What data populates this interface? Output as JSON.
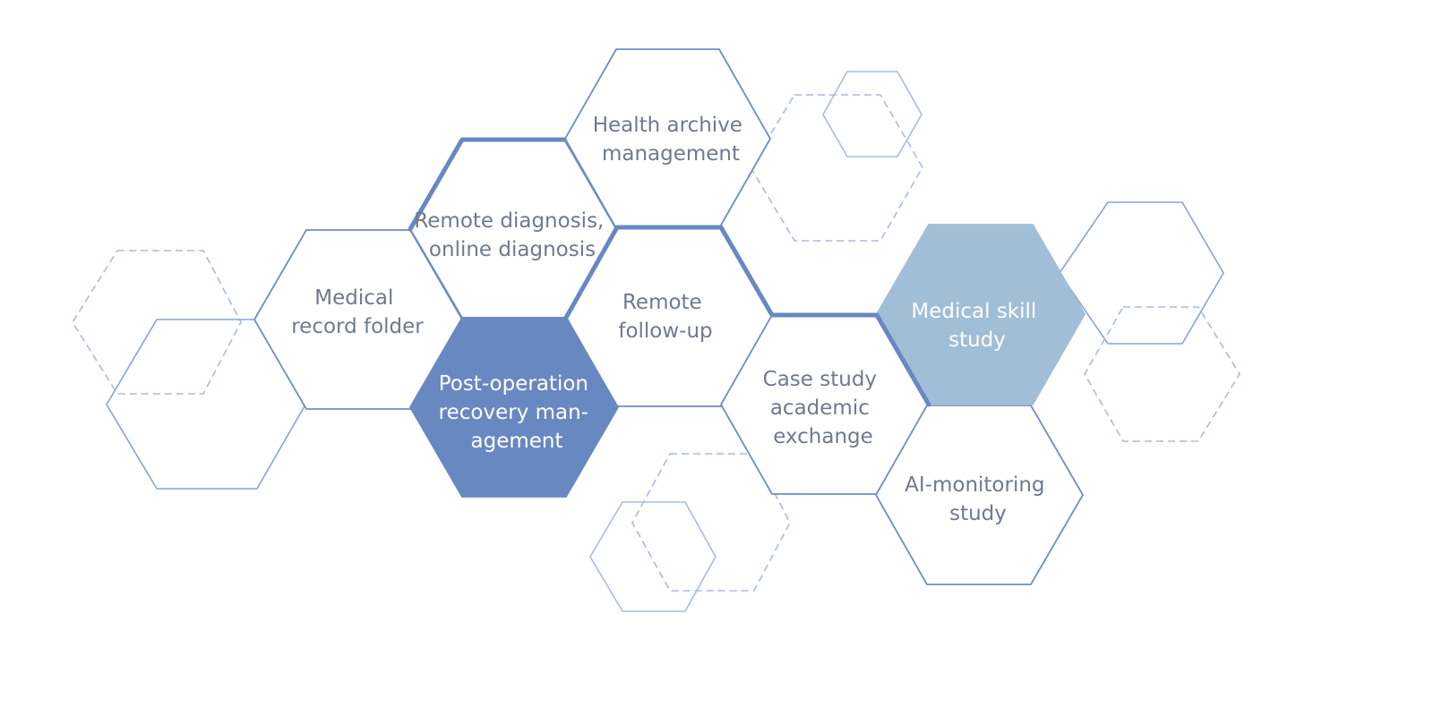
{
  "colors": {
    "outline": "#6f8cc4",
    "thick_outline": "#6888c4",
    "faint_outline": "#a9bbdf",
    "text": "#6f7a8c",
    "dark_fill": "#6888c2",
    "light_fill": "#a0bed6",
    "fill_text": "#ffffff"
  },
  "labels": {
    "health_archive": [
      "Health archive",
      "management"
    ],
    "remote_diagnosis": [
      "Remote diagnosis,",
      "online diagnosis"
    ],
    "medical_record": [
      "Medical",
      "record folder"
    ],
    "post_operation": [
      "Post-operation",
      "recovery man-",
      "agement"
    ],
    "remote_followup": [
      "Remote",
      "follow-up"
    ],
    "case_study": [
      "Case study",
      "academic",
      "exchange"
    ],
    "medical_skill": [
      "Medical skill",
      "study"
    ],
    "ai_monitoring": [
      "AI-monitoring",
      "study"
    ]
  }
}
